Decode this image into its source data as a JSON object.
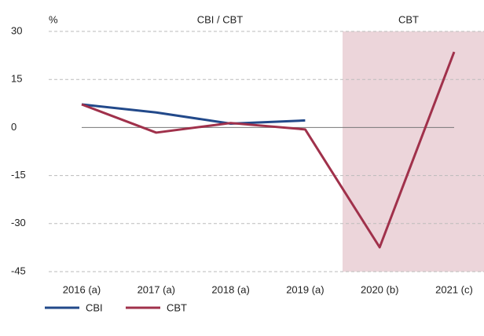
{
  "chart_data": {
    "type": "line",
    "y_unit": "%",
    "annotations": [
      "CBI / CBT",
      "CBT"
    ],
    "categories": [
      "2016 (a)",
      "2017 (a)",
      "2018 (a)",
      "2019 (a)",
      "2020 (b)",
      "2021 (c)"
    ],
    "series": [
      {
        "name": "CBI",
        "color": "#22498a",
        "values": [
          7.2,
          4.7,
          1.2,
          2.2,
          null,
          null
        ]
      },
      {
        "name": "CBT",
        "color": "#a0314b",
        "values": [
          7.2,
          -1.6,
          1.4,
          -0.6,
          -37.4,
          23.6
        ]
      }
    ],
    "ylim": [
      -45,
      30
    ],
    "yticks": [
      30,
      15,
      0,
      -15,
      -30,
      -45
    ],
    "grid": true
  }
}
